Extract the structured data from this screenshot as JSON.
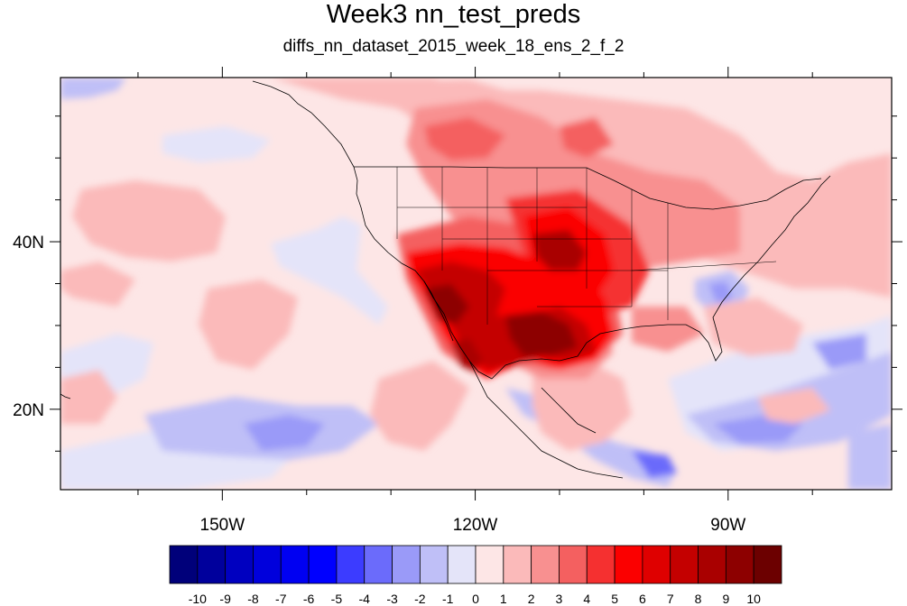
{
  "title": "Week3 nn_test_preds",
  "subtitle": "diffs_nn_dataset_2015_week_18_ens_2_f_2",
  "map": {
    "lon_range": [
      -169.2,
      -70.6
    ],
    "lat_range": [
      10.4,
      59.6
    ],
    "lon_ticks": [
      {
        "value": -150,
        "label": "150W"
      },
      {
        "value": -120,
        "label": "120W"
      },
      {
        "value": -90,
        "label": "90W"
      }
    ],
    "lat_ticks": [
      {
        "value": 40,
        "label": "40N"
      },
      {
        "value": 20,
        "label": "20N"
      }
    ],
    "background_color": "#fde6e6"
  },
  "colorbar": {
    "levels": [
      "-10",
      "-9",
      "-8",
      "-7",
      "-6",
      "-5",
      "-4",
      "-3",
      "-2",
      "-1",
      "0",
      "1",
      "2",
      "3",
      "4",
      "5",
      "6",
      "7",
      "8",
      "9",
      "10"
    ],
    "colors": [
      "#00007a",
      "#00009c",
      "#0000c0",
      "#0000dc",
      "#0000f2",
      "#0000ff",
      "#3c3cff",
      "#6b6bfb",
      "#9a9af8",
      "#bfbff7",
      "#e4e4f9",
      "#fde6e6",
      "#fbbaba",
      "#f89090",
      "#f46060",
      "#f53030",
      "#fb0000",
      "#df0000",
      "#c40000",
      "#a90000",
      "#8d0000",
      "#6c0000"
    ]
  }
}
